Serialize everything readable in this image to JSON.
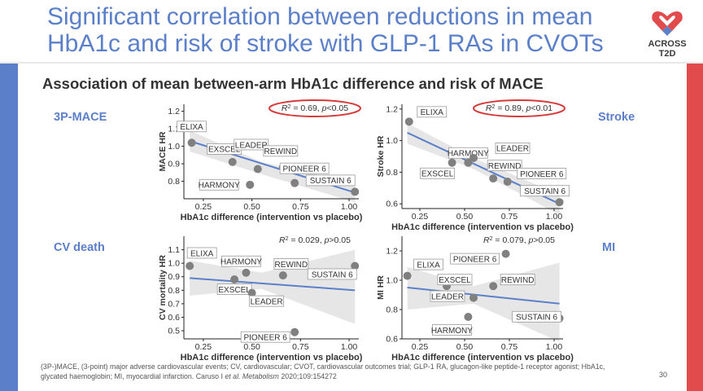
{
  "slide": {
    "title": "Significant correlation between reductions in mean HbA1c and risk of stroke with GLP-1 RAs in CVOTs",
    "subtitle": "Association of mean between-arm HbA1c difference and risk of MACE",
    "logo_line1": "ACROSS",
    "logo_line2": "T2D",
    "footnote_pre": "(3P-)MACE, (3-point) major adverse cardiovascular events; CV, cardiovascular; CVOT, cardiovascular outcomes trial; GLP-1 RA, glucagon-like peptide-1 receptor agonist; HbA1c, glycated haemoglobin; MI, myocardial infarction. Caruso I ",
    "footnote_italic": "et al. Metabolism",
    "footnote_post": " 2020;109:154272",
    "page_number": "30",
    "colors": {
      "title": "#5b7fc9",
      "left_band": "#5b7fc9",
      "right_band": "#e24b4b",
      "regression": "#5b7fc9",
      "point": "#808080",
      "highlight": "#d63a3a"
    }
  },
  "panel_labels": {
    "mace": "3P-MACE",
    "stroke": "Stroke",
    "cv_death": "CV death",
    "mi": "MI"
  },
  "chart_data": [
    {
      "id": "mace",
      "type": "scatter",
      "xlabel": "HbA1c difference (intervention vs placebo)",
      "ylabel": "MACE HR",
      "xlim": [
        0.15,
        1.05
      ],
      "ylim": [
        0.7,
        1.24
      ],
      "xticks": [
        "0.25",
        "0.50",
        "0.75",
        "1.00"
      ],
      "xtick_values": [
        0.25,
        0.5,
        0.75,
        1.0
      ],
      "yticks": [
        "0.8",
        "0.9",
        "1.0",
        "1.1",
        "1.2"
      ],
      "ytick_values": [
        0.8,
        0.9,
        1.0,
        1.1,
        1.2
      ],
      "stat_r2": "0.69",
      "stat_p": "<0.05",
      "stat_highlighted": true,
      "regression": [
        [
          0.18,
          1.03
        ],
        [
          1.03,
          0.735
        ]
      ],
      "ci": {
        "upper": [
          [
            0.18,
            1.09
          ],
          [
            0.55,
            0.91
          ],
          [
            1.03,
            0.79
          ]
        ],
        "lower": [
          [
            0.18,
            0.97
          ],
          [
            0.55,
            0.84
          ],
          [
            1.03,
            0.68
          ]
        ]
      },
      "points": [
        {
          "name": "ELIXA",
          "x": 0.19,
          "y": 1.02
        },
        {
          "name": "EXSCEL",
          "x": 0.4,
          "y": 0.91
        },
        {
          "name": "LEADER",
          "x": 0.53,
          "y": 0.87
        },
        {
          "name": "HARMONY",
          "x": 0.49,
          "y": 0.78
        },
        {
          "name": "REWIND",
          "x": 0.66,
          "y": 0.88
        },
        {
          "name": "PIONEER 6",
          "x": 0.72,
          "y": 0.79
        },
        {
          "name": "SUSTAIN 6",
          "x": 1.03,
          "y": 0.74
        }
      ]
    },
    {
      "id": "stroke",
      "type": "scatter",
      "xlabel": "HbA1c difference (intervention vs placebo)",
      "ylabel": "Stroke HR",
      "xlim": [
        0.15,
        1.05
      ],
      "ylim": [
        0.57,
        1.23
      ],
      "xticks": [
        "0.25",
        "0.50",
        "0.75",
        "1.00"
      ],
      "xtick_values": [
        0.25,
        0.5,
        0.75,
        1.0
      ],
      "yticks": [
        "0.6",
        "0.8",
        "1.0",
        "1.2"
      ],
      "ytick_values": [
        0.6,
        0.8,
        1.0,
        1.2
      ],
      "stat_r2": "0.89",
      "stat_p": "<0.01",
      "stat_highlighted": true,
      "regression": [
        [
          0.18,
          1.05
        ],
        [
          1.03,
          0.6
        ]
      ],
      "ci": {
        "upper": [
          [
            0.18,
            1.11
          ],
          [
            0.55,
            0.89
          ],
          [
            1.03,
            0.66
          ]
        ],
        "lower": [
          [
            0.18,
            0.98
          ],
          [
            0.55,
            0.82
          ],
          [
            1.03,
            0.53
          ]
        ]
      },
      "points": [
        {
          "name": "ELIXA",
          "x": 0.19,
          "y": 1.12
        },
        {
          "name": "EXSCEL",
          "x": 0.43,
          "y": 0.86
        },
        {
          "name": "HARMONY",
          "x": 0.52,
          "y": 0.86
        },
        {
          "name": "LEADER",
          "x": 0.55,
          "y": 0.89
        },
        {
          "name": "REWIND",
          "x": 0.66,
          "y": 0.76
        },
        {
          "name": "PIONEER 6",
          "x": 0.74,
          "y": 0.74
        },
        {
          "name": "SUSTAIN 6",
          "x": 1.03,
          "y": 0.61
        }
      ]
    },
    {
      "id": "cv_death",
      "type": "scatter",
      "xlabel": "HbA1c difference (intervention vs placebo)",
      "ylabel": "CV mortality HR",
      "xlim": [
        0.15,
        1.05
      ],
      "ylim": [
        0.44,
        1.2
      ],
      "xticks": [
        "0.25",
        "0.50",
        "0.75",
        "1.00"
      ],
      "xtick_values": [
        0.25,
        0.5,
        0.75,
        1.0
      ],
      "yticks": [
        "0.5",
        "0.6",
        "0.7",
        "0.8",
        "0.9",
        "1.0",
        "1.1"
      ],
      "ytick_values": [
        0.5,
        0.6,
        0.7,
        0.8,
        0.9,
        1.0,
        1.1
      ],
      "stat_r2": "0.029",
      "stat_p": ">0.05",
      "stat_highlighted": false,
      "regression": [
        [
          0.18,
          0.89
        ],
        [
          1.03,
          0.8
        ]
      ],
      "ci": {
        "upper": [
          [
            0.18,
            1.02
          ],
          [
            0.55,
            0.93
          ],
          [
            1.03,
            1.1
          ]
        ],
        "lower": [
          [
            0.18,
            0.76
          ],
          [
            0.55,
            0.81
          ],
          [
            1.03,
            0.55
          ]
        ]
      },
      "points": [
        {
          "name": "ELIXA",
          "x": 0.18,
          "y": 0.98
        },
        {
          "name": "HARMONY",
          "x": 0.47,
          "y": 0.93
        },
        {
          "name": "EXSCEL",
          "x": 0.41,
          "y": 0.88
        },
        {
          "name": "LEADER",
          "x": 0.5,
          "y": 0.78
        },
        {
          "name": "REWIND",
          "x": 0.66,
          "y": 0.91
        },
        {
          "name": "SUSTAIN 6",
          "x": 1.03,
          "y": 0.98
        },
        {
          "name": "PIONEER 6",
          "x": 0.72,
          "y": 0.49
        }
      ]
    },
    {
      "id": "mi",
      "type": "scatter",
      "xlabel": "HbA1c difference (intervention vs placebo)",
      "ylabel": "MI HR",
      "xlim": [
        0.15,
        1.05
      ],
      "ylim": [
        0.6,
        1.3
      ],
      "xticks": [
        "0.25",
        "0.50",
        "0.75",
        "1.00"
      ],
      "xtick_values": [
        0.25,
        0.5,
        0.75,
        1.0
      ],
      "yticks": [
        "0.6",
        "0.8",
        "1.0",
        "1.2"
      ],
      "ytick_values": [
        0.6,
        0.8,
        1.0,
        1.2
      ],
      "stat_r2": "0.079",
      "stat_p": ">0.05",
      "stat_highlighted": false,
      "regression": [
        [
          0.18,
          0.95
        ],
        [
          1.03,
          0.84
        ]
      ],
      "ci": {
        "upper": [
          [
            0.18,
            1.09
          ],
          [
            0.55,
            0.96
          ],
          [
            1.03,
            1.12
          ]
        ],
        "lower": [
          [
            0.18,
            0.8
          ],
          [
            0.55,
            0.84
          ],
          [
            1.03,
            0.58
          ]
        ]
      },
      "points": [
        {
          "name": "ELIXA",
          "x": 0.18,
          "y": 1.03
        },
        {
          "name": "EXSCEL",
          "x": 0.4,
          "y": 0.96
        },
        {
          "name": "LEADER",
          "x": 0.55,
          "y": 0.88
        },
        {
          "name": "HARMONY",
          "x": 0.52,
          "y": 0.75
        },
        {
          "name": "PIONEER 6",
          "x": 0.73,
          "y": 1.18
        },
        {
          "name": "REWIND",
          "x": 0.66,
          "y": 0.96
        },
        {
          "name": "SUSTAIN 6",
          "x": 1.03,
          "y": 0.74
        }
      ]
    }
  ]
}
